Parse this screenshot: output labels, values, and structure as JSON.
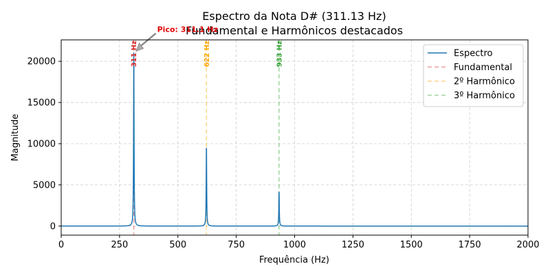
{
  "chart_data": {
    "type": "line",
    "title": "Espectro da Nota D# (311.13 Hz)",
    "subtitle": "Fundamental e Harmônicos destacados",
    "xlabel": "Frequência (Hz)",
    "ylabel": "Magnitude",
    "xlim": [
      0,
      2000
    ],
    "ylim": [
      -1100,
      22600
    ],
    "x_ticks": [
      0,
      250,
      500,
      750,
      1000,
      1250,
      1500,
      1750,
      2000
    ],
    "y_ticks": [
      0,
      5000,
      10000,
      15000,
      20000
    ],
    "grid": true,
    "legend_position": "top-right",
    "series": [
      {
        "name": "Espectro",
        "color": "#1f77b4",
        "peaks": [
          {
            "x": 311.13,
            "y": 21300
          },
          {
            "x": 622.26,
            "y": 9850
          },
          {
            "x": 933.39,
            "y": 4200
          }
        ]
      }
    ],
    "markers": [
      {
        "name": "Fundamental",
        "x": 311.13,
        "label": "311 Hz",
        "color": "#d62728"
      },
      {
        "name": "2º Harmônico",
        "x": 622.26,
        "label": "622 Hz",
        "color": "#ffa500"
      },
      {
        "name": "3º Harmônico",
        "x": 933.39,
        "label": "933 Hz",
        "color": "#2ca02c"
      }
    ],
    "peak_annotation": {
      "text": "Pico: 311.1 Hz",
      "x": 311.13,
      "y": 21300,
      "color": "#e00000"
    }
  }
}
